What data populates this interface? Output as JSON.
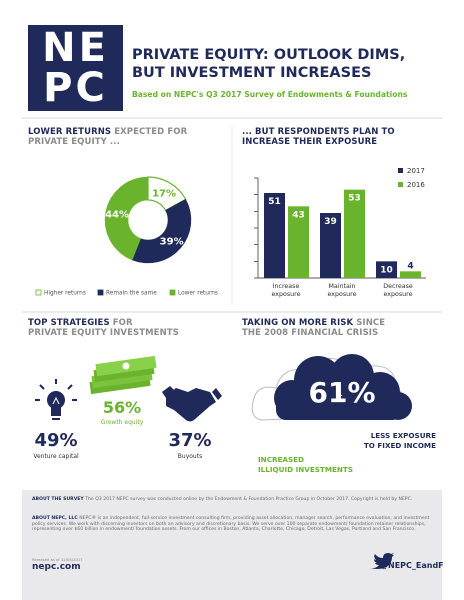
{
  "header": {
    "logo_lines": [
      "NE",
      "PC"
    ],
    "title_lines": [
      "PRIVATE EQUITY: OUTLOOK DIMS,",
      "BUT INVESTMENT INCREASES"
    ],
    "subtitle": "Based on NEPC's Q3 2017 Survey of Endowments & Foundations"
  },
  "chart_data": [
    {
      "type": "pie",
      "title_lines": [
        [
          "LOWER RETURNS",
          "EXPECTED FOR"
        ],
        [
          "PRIVATE EQUITY ..."
        ]
      ],
      "title_colors": [
        [
          "#1f2a5a",
          "#8c8c8c"
        ],
        [
          "#8c8c8c"
        ]
      ],
      "categories": [
        "Higher returns",
        "Remain the same",
        "Lower returns"
      ],
      "values": [
        17,
        39,
        44
      ],
      "value_labels": [
        "17%",
        "39%",
        "44%"
      ],
      "colors": [
        "#ffffff",
        "#1f2a5a",
        "#6ab42d"
      ],
      "edgecolor": "#6ab42d"
    },
    {
      "type": "bar",
      "title_lines": [
        [
          "... BUT RESPONDENTS PLAN TO"
        ],
        [
          "INCREASE THEIR EXPOSURE"
        ]
      ],
      "title_colors": [
        [
          "#1f2a5a"
        ],
        [
          "#1f2a5a"
        ]
      ],
      "categories": [
        "Increase exposure",
        "Maintain exposure",
        "Decrease exposure"
      ],
      "series": [
        {
          "name": "2017",
          "color": "#1f2a5a",
          "values": [
            51,
            39,
            10
          ]
        },
        {
          "name": "2016",
          "color": "#6ab42d",
          "values": [
            43,
            53,
            4
          ]
        }
      ],
      "ylim": [
        0,
        60
      ],
      "yticks": [
        0,
        10,
        20,
        30,
        40,
        50,
        60
      ]
    }
  ],
  "strategies": {
    "title_lines": [
      [
        "TOP STRATEGIES",
        "FOR"
      ],
      [
        "PRIVATE EQUITY INVESTMENTS"
      ]
    ],
    "title_colors": [
      [
        "#1f2a5a",
        "#8c8c8c"
      ],
      [
        "#8c8c8c"
      ]
    ],
    "items": [
      {
        "value": "49%",
        "name": "Venture capital"
      },
      {
        "value": "56%",
        "name": "Growth equity"
      },
      {
        "value": "37%",
        "name": "Buyouts"
      }
    ]
  },
  "risk": {
    "title_lines": [
      [
        "TAKING ON MORE RISK",
        "SINCE"
      ],
      [
        "THE 2008 FINANCIAL CRISIS"
      ]
    ],
    "title_colors": [
      [
        "#1f2a5a",
        "#8c8c8c"
      ],
      [
        "#8c8c8c"
      ]
    ],
    "value": "61%",
    "right_lines": [
      "LESS EXPOSURE",
      "TO FIXED INCOME"
    ],
    "left_lines": [
      "INCREASED",
      "ILLIQUID INVESTMENTS"
    ]
  },
  "footer": {
    "survey_label": "ABOUT THE SURVEY",
    "survey_text": "The Q3 2017 NEPC survey was conducted online by the Endowment & Foundation Practice Group in October 2017. Copyright is held by NEPC.",
    "nepc_label": "ABOUT NEPC, LLC",
    "nepc_text": "NEPC® is an independent, full-service investment consulting firm, providing asset allocation, manager search, performance evaluation, and investment policy services. We work with discerning investors on both an advisory and discretionary basis. We serve over 100 separate endowment/ foundation retainer relationships, representing over $60 billion in endowment/ foundation assets. From our offices in Boston, Atlanta, Charlotte, Chicago, Detroit, Las Vegas, Portland and San Francisco.",
    "released": "Released as of 12/05/2017",
    "site": "nepc.com",
    "twitter": "@NEPC_EandF"
  }
}
